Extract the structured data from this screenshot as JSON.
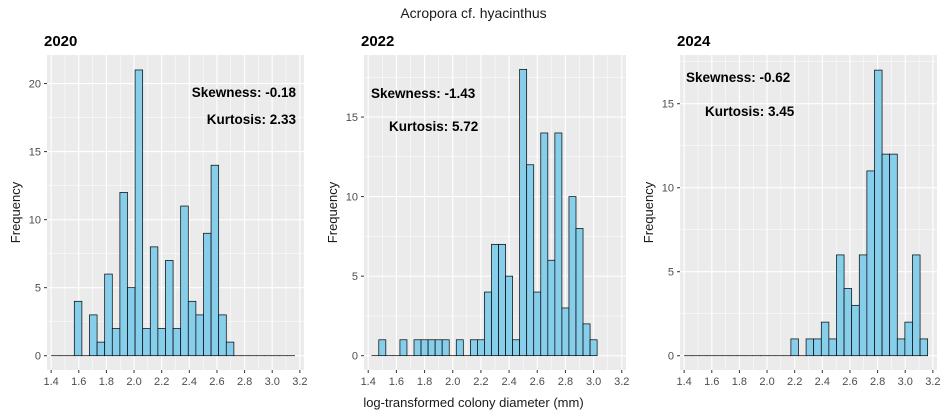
{
  "figure": {
    "title": "Acropora cf. hyacinthus",
    "xlabel": "log-transformed colony diameter (mm)"
  },
  "colors": {
    "panel_bg": "#ebebeb",
    "grid": "#ffffff",
    "bar_fill": "#87ceeb",
    "bar_stroke": "#000000"
  },
  "chart_data": [
    {
      "type": "bar",
      "title": "2020",
      "xlabel": "",
      "ylabel": "Frequency",
      "bin_width": 0.055,
      "xlim": [
        1.37,
        3.23
      ],
      "ylim": [
        -1.05,
        22.1
      ],
      "x_ticks": [
        1.4,
        1.6,
        1.8,
        2.0,
        2.2,
        2.4,
        2.6,
        2.8,
        3.0,
        3.2
      ],
      "x_tick_labels": [
        "1.4",
        "1.6",
        "1.8",
        "2.0",
        "2.2",
        "2.4",
        "2.6",
        "2.8",
        "3.0",
        "3.2"
      ],
      "y_ticks": [
        0,
        5,
        10,
        15,
        20
      ],
      "y_tick_labels": [
        "0",
        "5",
        "10",
        "15",
        "20"
      ],
      "bins": [
        {
          "x": 1.43,
          "count": 0
        },
        {
          "x": 1.485,
          "count": 0
        },
        {
          "x": 1.54,
          "count": 0
        },
        {
          "x": 1.595,
          "count": 4
        },
        {
          "x": 1.65,
          "count": 0
        },
        {
          "x": 1.705,
          "count": 3
        },
        {
          "x": 1.76,
          "count": 1
        },
        {
          "x": 1.815,
          "count": 6
        },
        {
          "x": 1.87,
          "count": 2
        },
        {
          "x": 1.925,
          "count": 12
        },
        {
          "x": 1.98,
          "count": 5
        },
        {
          "x": 2.035,
          "count": 21
        },
        {
          "x": 2.09,
          "count": 2
        },
        {
          "x": 2.145,
          "count": 8
        },
        {
          "x": 2.2,
          "count": 2
        },
        {
          "x": 2.255,
          "count": 7
        },
        {
          "x": 2.31,
          "count": 2
        },
        {
          "x": 2.365,
          "count": 11
        },
        {
          "x": 2.42,
          "count": 4
        },
        {
          "x": 2.475,
          "count": 3
        },
        {
          "x": 2.53,
          "count": 9
        },
        {
          "x": 2.585,
          "count": 14
        },
        {
          "x": 2.64,
          "count": 3
        },
        {
          "x": 2.695,
          "count": 1
        },
        {
          "x": 2.75,
          "count": 0
        },
        {
          "x": 2.805,
          "count": 0
        },
        {
          "x": 2.86,
          "count": 0
        },
        {
          "x": 2.915,
          "count": 0
        },
        {
          "x": 2.97,
          "count": 0
        },
        {
          "x": 3.025,
          "count": 0
        },
        {
          "x": 3.08,
          "count": 0
        },
        {
          "x": 3.135,
          "count": 0
        }
      ],
      "annotations": [
        "Skewness: -0.18",
        "Kurtosis: 2.33"
      ]
    },
    {
      "type": "bar",
      "title": "2022",
      "xlabel": "",
      "ylabel": "Frequency",
      "bin_width": 0.05,
      "xlim": [
        1.37,
        3.23
      ],
      "ylim": [
        -0.9,
        18.9
      ],
      "x_ticks": [
        1.4,
        1.6,
        1.8,
        2.0,
        2.2,
        2.4,
        2.6,
        2.8,
        3.0,
        3.2
      ],
      "x_tick_labels": [
        "1.4",
        "1.6",
        "1.8",
        "2.0",
        "2.2",
        "2.4",
        "2.6",
        "2.8",
        "3.0",
        "3.2"
      ],
      "y_ticks": [
        0,
        5,
        10,
        15
      ],
      "y_tick_labels": [
        "0",
        "5",
        "10",
        "15"
      ],
      "bins": [
        {
          "x": 1.45,
          "count": 0
        },
        {
          "x": 1.5,
          "count": 1
        },
        {
          "x": 1.55,
          "count": 0
        },
        {
          "x": 1.6,
          "count": 0
        },
        {
          "x": 1.65,
          "count": 1
        },
        {
          "x": 1.7,
          "count": 0
        },
        {
          "x": 1.75,
          "count": 1
        },
        {
          "x": 1.8,
          "count": 1
        },
        {
          "x": 1.85,
          "count": 1
        },
        {
          "x": 1.9,
          "count": 1
        },
        {
          "x": 1.95,
          "count": 1
        },
        {
          "x": 2.0,
          "count": 0
        },
        {
          "x": 2.05,
          "count": 1
        },
        {
          "x": 2.1,
          "count": 0
        },
        {
          "x": 2.15,
          "count": 1
        },
        {
          "x": 2.2,
          "count": 1
        },
        {
          "x": 2.25,
          "count": 4
        },
        {
          "x": 2.3,
          "count": 7
        },
        {
          "x": 2.35,
          "count": 7
        },
        {
          "x": 2.4,
          "count": 5
        },
        {
          "x": 2.45,
          "count": 1
        },
        {
          "x": 2.5,
          "count": 18
        },
        {
          "x": 2.55,
          "count": 12
        },
        {
          "x": 2.6,
          "count": 4
        },
        {
          "x": 2.65,
          "count": 14
        },
        {
          "x": 2.7,
          "count": 6
        },
        {
          "x": 2.75,
          "count": 14
        },
        {
          "x": 2.8,
          "count": 3
        },
        {
          "x": 2.85,
          "count": 10
        },
        {
          "x": 2.9,
          "count": 8
        },
        {
          "x": 2.95,
          "count": 2
        },
        {
          "x": 3.0,
          "count": 1
        }
      ],
      "annotations": [
        "Skewness: -1.43",
        "Kurtosis: 5.72"
      ]
    },
    {
      "type": "bar",
      "title": "2024",
      "xlabel": "",
      "ylabel": "Frequency",
      "bin_width": 0.055,
      "xlim": [
        1.37,
        3.23
      ],
      "ylim": [
        -0.85,
        17.9
      ],
      "x_ticks": [
        1.4,
        1.6,
        1.8,
        2.0,
        2.2,
        2.4,
        2.6,
        2.8,
        3.0,
        3.2
      ],
      "x_tick_labels": [
        "1.4",
        "1.6",
        "1.8",
        "2.0",
        "2.2",
        "2.4",
        "2.6",
        "2.8",
        "3.0",
        "3.2"
      ],
      "y_ticks": [
        0,
        5,
        10,
        15
      ],
      "y_tick_labels": [
        "0",
        "5",
        "10",
        "15"
      ],
      "bins": [
        {
          "x": 1.43,
          "count": 0
        },
        {
          "x": 1.485,
          "count": 0
        },
        {
          "x": 1.54,
          "count": 0
        },
        {
          "x": 1.595,
          "count": 0
        },
        {
          "x": 1.65,
          "count": 0
        },
        {
          "x": 1.705,
          "count": 0
        },
        {
          "x": 1.76,
          "count": 0
        },
        {
          "x": 1.815,
          "count": 0
        },
        {
          "x": 1.87,
          "count": 0
        },
        {
          "x": 1.925,
          "count": 0
        },
        {
          "x": 1.98,
          "count": 0
        },
        {
          "x": 2.035,
          "count": 0
        },
        {
          "x": 2.09,
          "count": 0
        },
        {
          "x": 2.145,
          "count": 0
        },
        {
          "x": 2.2,
          "count": 1
        },
        {
          "x": 2.255,
          "count": 0
        },
        {
          "x": 2.31,
          "count": 1
        },
        {
          "x": 2.365,
          "count": 1
        },
        {
          "x": 2.42,
          "count": 2
        },
        {
          "x": 2.475,
          "count": 1
        },
        {
          "x": 2.53,
          "count": 6
        },
        {
          "x": 2.585,
          "count": 4
        },
        {
          "x": 2.64,
          "count": 3
        },
        {
          "x": 2.695,
          "count": 6
        },
        {
          "x": 2.75,
          "count": 11
        },
        {
          "x": 2.805,
          "count": 17
        },
        {
          "x": 2.86,
          "count": 12
        },
        {
          "x": 2.915,
          "count": 12
        },
        {
          "x": 2.97,
          "count": 1
        },
        {
          "x": 3.025,
          "count": 2
        },
        {
          "x": 3.08,
          "count": 6
        },
        {
          "x": 3.135,
          "count": 1
        }
      ],
      "annotations": [
        "Skewness: -0.62",
        "Kurtosis: 3.45"
      ]
    }
  ]
}
